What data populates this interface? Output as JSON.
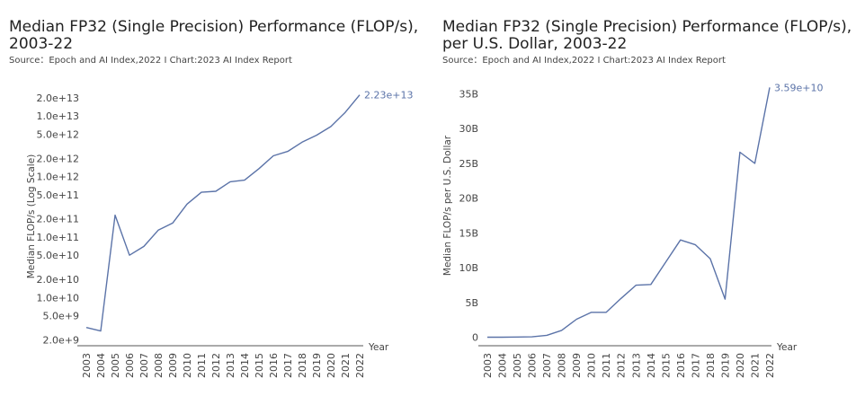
{
  "chart_data": [
    {
      "type": "line",
      "title_line1": "Median FP32 (Single Precision) Performance (FLOP/s),",
      "title_line2": "2003-22",
      "source": "Source：Epoch and AI Index,2022 I Chart:2023 AI Index Report",
      "xlabel": "Year",
      "ylabel": "Median FLOP/s (Log Scale)",
      "yscale": "log",
      "ylim": [
        1600000000.0,
        30000000000000.0
      ],
      "y_ticks": [
        2000000000.0,
        5000000000.0,
        10000000000.0,
        20000000000.0,
        50000000000.0,
        100000000000.0,
        200000000000.0,
        500000000000.0,
        1000000000000.0,
        2000000000000.0,
        5000000000000.0,
        10000000000000.0,
        20000000000000.0
      ],
      "y_tick_labels": [
        "2.0e+9",
        "5.0e+9",
        "1.0e+10",
        "2.0e+10",
        "5.0e+10",
        "1.0e+11",
        "2.0e+11",
        "5.0e+11",
        "1.0e+12",
        "2.0e+12",
        "5.0e+12",
        "1.0e+13",
        "2.0e+13"
      ],
      "categories": [
        "2003",
        "2004",
        "2005",
        "2006",
        "2007",
        "2008",
        "2009",
        "2010",
        "2011",
        "2012",
        "2013",
        "2014",
        "2015",
        "2016",
        "2017",
        "2018",
        "2019",
        "2020",
        "2021",
        "2022"
      ],
      "values": [
        3200000000.0,
        2800000000.0,
        230000000000.0,
        50000000000.0,
        70000000000.0,
        130000000000.0,
        170000000000.0,
        350000000000.0,
        550000000000.0,
        570000000000.0,
        820000000000.0,
        870000000000.0,
        1350000000000.0,
        2200000000000.0,
        2600000000000.0,
        3700000000000.0,
        4800000000000.0,
        6700000000000.0,
        11500000000000.0,
        22300000000000.0
      ],
      "end_label": "2.23e+13",
      "color": "#5b73a8"
    },
    {
      "type": "line",
      "title_line1": "Median FP32 (Single Precision) Performance (FLOP/s),",
      "title_line2": "per U.S. Dollar, 2003-22",
      "source": "Source：Epoch and AI Index,2022 I Chart:2023 AI Index Report",
      "xlabel": "Year",
      "ylabel": "Median FLOP/s per U.S. Dollar",
      "yscale": "linear",
      "ylim": [
        -1200000000.0,
        37500000000.0
      ],
      "y_ticks": [
        0,
        5000000000.0,
        10000000000.0,
        15000000000.0,
        20000000000.0,
        25000000000.0,
        30000000000.0,
        35000000000.0
      ],
      "y_tick_labels": [
        "0",
        "5B",
        "10B",
        "15B",
        "20B",
        "25B",
        "30B",
        "35B"
      ],
      "categories": [
        "2003",
        "2004",
        "2005",
        "2006",
        "2007",
        "2008",
        "2009",
        "2010",
        "2011",
        "2012",
        "2013",
        "2014",
        "2015",
        "2016",
        "2017",
        "2018",
        "2019",
        "2020",
        "2021",
        "2022"
      ],
      "values": [
        20000000.0,
        20000000.0,
        50000000.0,
        80000000.0,
        300000000.0,
        1000000000.0,
        2600000000.0,
        3600000000.0,
        3600000000.0,
        5600000000.0,
        7500000000.0,
        7600000000.0,
        10800000000.0,
        14000000000.0,
        13300000000.0,
        11300000000.0,
        5500000000.0,
        26600000000.0,
        25000000000.0,
        35900000000.0
      ],
      "end_label": "3.59e+10",
      "color": "#5b73a8"
    }
  ]
}
